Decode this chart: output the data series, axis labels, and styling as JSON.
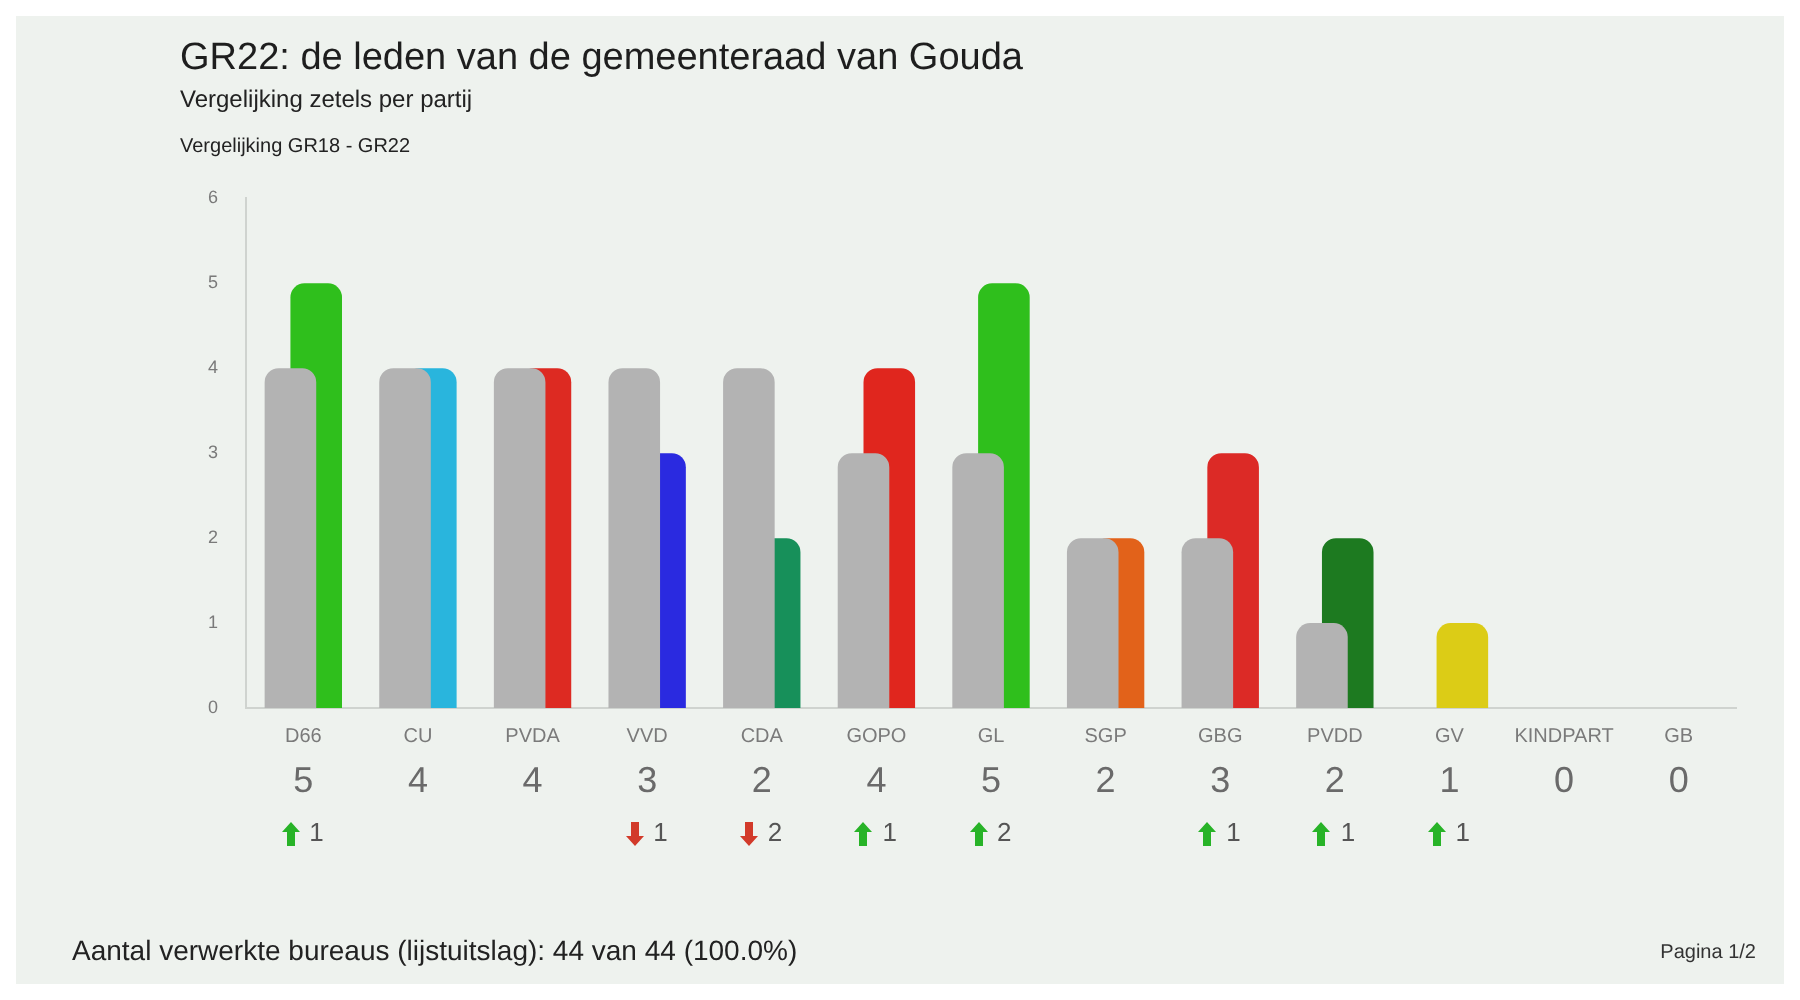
{
  "chart_data": {
    "type": "bar",
    "title": "GR22: de leden van de gemeenteraad van Gouda",
    "subtitle": "Vergelijking zetels per partij",
    "categories": [
      "D66",
      "CU",
      "PVDA",
      "VVD",
      "CDA",
      "GOPO",
      "GL",
      "SGP",
      "GBG",
      "PVDD",
      "GV",
      "KINDPART",
      "GB"
    ],
    "series": [
      {
        "color": "#b3b3b3",
        "values": [
          4,
          4,
          4,
          4,
          4,
          3,
          3,
          2,
          2,
          1,
          0,
          0,
          0
        ]
      },
      {
        "colors": [
          "#2fbf1c",
          "#29b5dd",
          "#dd2a22",
          "#2a2ae0",
          "#17905a",
          "#e0261e",
          "#2fbf1c",
          "#e2621a",
          "#dc2a26",
          "#1d7a20",
          "#dccc16",
          null,
          null
        ],
        "values": [
          5,
          4,
          4,
          3,
          2,
          4,
          5,
          2,
          3,
          2,
          1,
          0,
          0
        ],
        "value_labels": [
          "5",
          "4",
          "4",
          "3",
          "2",
          "4",
          "5",
          "2",
          "3",
          "2",
          "1",
          "0",
          "0"
        ]
      }
    ],
    "ylim": [
      0,
      6
    ],
    "yticks": [
      0,
      1,
      2,
      3,
      4,
      5,
      6
    ],
    "annotations": [
      "Vergelijking GR18 - GR22",
      "Aantal verwerkte bureaus (lijstuitslag): 44 van 44 (100.0%)",
      "Pagina 1/2",
      "1",
      "1",
      "2",
      "1",
      "2",
      "1",
      "1",
      "1"
    ]
  }
}
